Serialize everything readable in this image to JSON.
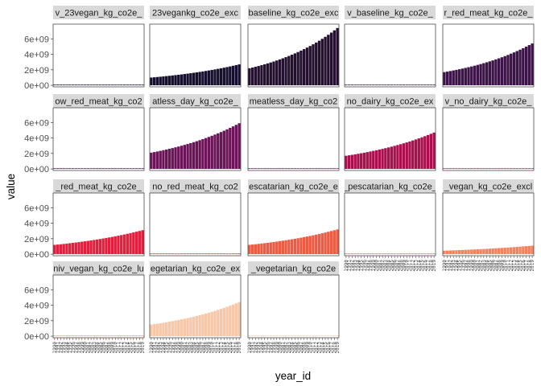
{
  "chart_data": {
    "type": "bar",
    "layout": "facet_wrap",
    "xlabel": "year_id",
    "ylabel": "value",
    "x": [
      1990,
      1991,
      1992,
      1993,
      1994,
      1995,
      1996,
      1997,
      1998,
      1999,
      2000,
      2001,
      2002,
      2003,
      2004,
      2005,
      2006,
      2007,
      2008,
      2009,
      2010,
      2011,
      2012,
      2013,
      2014,
      2015,
      2016,
      2017,
      2018,
      2019
    ],
    "y_ticks": [
      "0e+00",
      "2e+09",
      "4e+09",
      "6e+09"
    ],
    "ylim": [
      -200000000,
      7900000000
    ],
    "grid": false,
    "legend": "none",
    "panels": [
      {
        "name": "v_23vegan_kg_co2e_",
        "color": "#0d0a29",
        "start": 20000000,
        "end": 60000000
      },
      {
        "name": "23vegankg_co2e_exc",
        "color": "#170f2e",
        "start": 1000000000,
        "end": 2700000000
      },
      {
        "name": "baseline_kg_co2e_exc",
        "color": "#24112f",
        "start": 2200000000,
        "end": 7400000000
      },
      {
        "name": "v_baseline_kg_co2e_",
        "color": "#2f1334",
        "start": 20000000,
        "end": 80000000
      },
      {
        "name": "r_red_meat_kg_co2e_",
        "color": "#3d1447",
        "start": 1700000000,
        "end": 5400000000
      },
      {
        "name": "ow_red_meat_kg_co2",
        "color": "#4a1451",
        "start": 20000000,
        "end": 80000000
      },
      {
        "name": "atless_day_kg_co2e_",
        "color": "#6b1458",
        "start": 2100000000,
        "end": 5900000000
      },
      {
        "name": "meatless_day_kg_co2",
        "color": "#7e1259",
        "start": 20000000,
        "end": 80000000
      },
      {
        "name": "no_dairy_kg_co2e_ex",
        "color": "#a8104e",
        "start": 1700000000,
        "end": 4700000000
      },
      {
        "name": "v_no_dairy_kg_co2e_",
        "color": "#b6144c",
        "start": 20000000,
        "end": 80000000
      },
      {
        "name": "_red_meat_kg_co2e_",
        "color": "#e0203e",
        "start": 1200000000,
        "end": 3100000000
      },
      {
        "name": "no_red_meat_kg_co2",
        "color": "#e3313f",
        "start": 20000000,
        "end": 60000000
      },
      {
        "name": "escatarian_kg_co2e_e",
        "color": "#ec5b43",
        "start": 1200000000,
        "end": 3200000000
      },
      {
        "name": "_pescatarian_kg_co2e_",
        "color": "#ee6f50",
        "start": 20000000,
        "end": 60000000
      },
      {
        "name": "_vegan_kg_co2e_excl",
        "color": "#f28360",
        "start": 450000000,
        "end": 1100000000
      },
      {
        "name": "niv_vegan_kg_co2e_lu",
        "color": "#f3a07d",
        "start": 20000000,
        "end": 50000000
      },
      {
        "name": "egetarian_kg_co2e_ex",
        "color": "#f6c7a9",
        "start": 1500000000,
        "end": 4400000000
      },
      {
        "name": "_vegetarian_kg_co2e",
        "color": "#f7d2b8",
        "start": 20000000,
        "end": 60000000
      }
    ]
  }
}
